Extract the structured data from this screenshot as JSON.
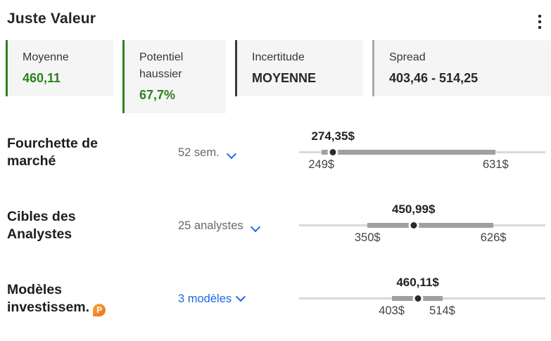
{
  "header": {
    "title": "Juste Valeur",
    "menu_icon": "kebab-menu"
  },
  "colors": {
    "accent_green": "#2b831d",
    "accent_dark": "#3a3a3a",
    "accent_gray": "#ababab",
    "link_blue": "#1f6ae0",
    "badge_orange": "#ee7a22",
    "card_background": "#f5f5f5",
    "range_bar": "#9fa0a2",
    "dot": "#2b2b2b"
  },
  "summary_cards": [
    {
      "label": "Moyenne",
      "value": "460,11",
      "accent": "green"
    },
    {
      "label": "Potentiel haussier",
      "value": "67,7%",
      "accent": "green"
    },
    {
      "label": "Incertitude",
      "value": "MOYENNE",
      "accent": "dark"
    },
    {
      "label": "Spread",
      "value": "403,46 - 514,25",
      "accent": "gray"
    }
  ],
  "chart_data": {
    "type": "bar",
    "variant": "horizontal-range-with-dot-marker",
    "unit": "$",
    "axis_range": [
      200,
      740
    ],
    "grid": false,
    "rows": [
      {
        "label": "Fourchette de marché",
        "meta": "52 sem.",
        "meta_is_dropdown": false,
        "value": 274.35,
        "value_label": "274,35$",
        "range": [
          249,
          631
        ],
        "min_label": "249$",
        "max_label": "631$"
      },
      {
        "label": "Cibles des Analystes",
        "meta": "25 analystes",
        "meta_is_dropdown": false,
        "value": 450.99,
        "value_label": "450,99$",
        "range": [
          350,
          626
        ],
        "min_label": "350$",
        "max_label": "626$"
      },
      {
        "label": "Modèles investissem.",
        "pro_badge": "P",
        "meta": "3 modèles",
        "meta_is_dropdown": true,
        "value": 460.11,
        "value_label": "460,11$",
        "range": [
          403,
          514
        ],
        "min_label": "403$",
        "max_label": "514$"
      }
    ]
  }
}
